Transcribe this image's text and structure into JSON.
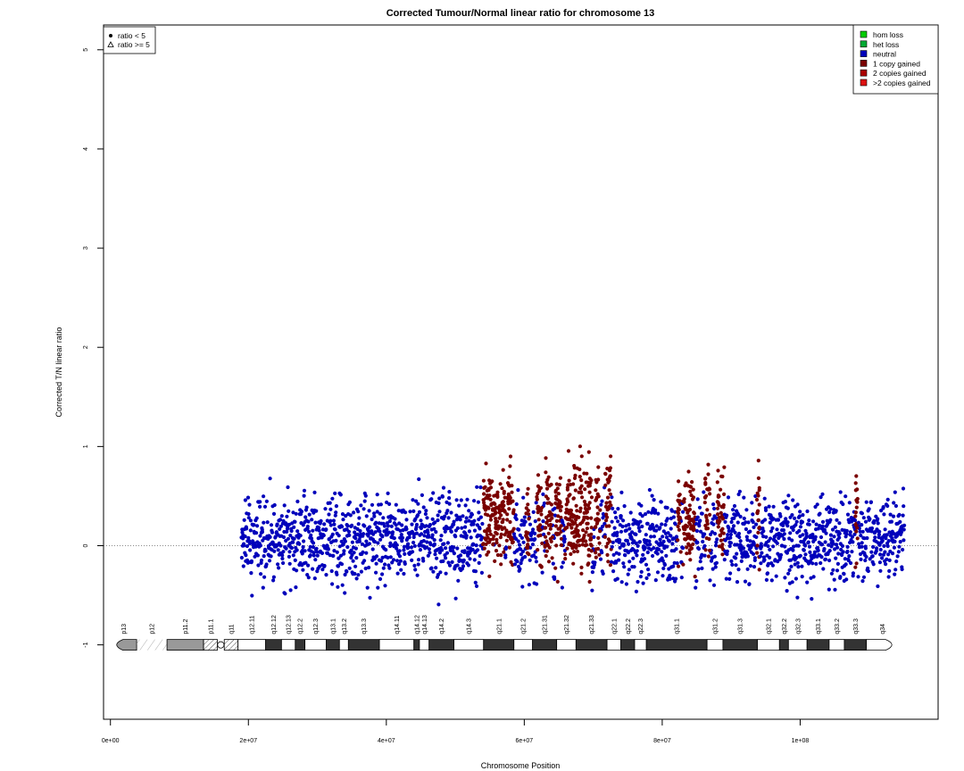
{
  "chart_data": {
    "type": "scatter",
    "title": "Corrected Tumour/Normal linear ratio for chromosome  13",
    "xlabel": "Chromosome Position",
    "ylabel": "Corrected T/N linear ratio",
    "xlim": [
      -1000000,
      120000000.0
    ],
    "ylim": [
      -1.75,
      5.25
    ],
    "x_ticks": [
      0,
      20000000,
      40000000,
      60000000,
      80000000,
      100000000
    ],
    "x_tick_labels": [
      "0e+00",
      "2e+07",
      "4e+07",
      "6e+07",
      "8e+07",
      "1e+08"
    ],
    "y_ticks": [
      -1,
      0,
      1,
      2,
      3,
      4,
      5
    ],
    "y_tick_labels": [
      "-1",
      "0",
      "1",
      "2",
      "3",
      "4",
      "5"
    ],
    "reference_line": 0,
    "data_range": [
      19000000,
      115100000
    ],
    "colors": {
      "hom_loss": "#00cc00",
      "het_loss": "#00aa33",
      "neutral": "#0000bb",
      "gain1": "#7a0000",
      "gain2": "#aa0000",
      "gain_more": "#dd1111"
    },
    "shape_legend": {
      "position": "top-left",
      "items": [
        {
          "symbol": "filled-circle",
          "label": "ratio < 5"
        },
        {
          "symbol": "open-triangle",
          "label": "ratio >= 5"
        }
      ]
    },
    "legend": {
      "position": "top-right",
      "items": [
        {
          "label": "hom loss",
          "color_key": "hom_loss"
        },
        {
          "label": "het loss",
          "color_key": "het_loss"
        },
        {
          "label": "neutral",
          "color_key": "neutral"
        },
        {
          "label": "1 copy gained",
          "color_key": "gain1"
        },
        {
          "label": "2 copies gained",
          "color_key": "gain2"
        },
        {
          "label": ">2 copies gained",
          "color_key": "gain_more"
        }
      ]
    },
    "gain_regions": [
      [
        54000000,
        55600000
      ],
      [
        55700000,
        57200000
      ],
      [
        57400000,
        58500000
      ],
      [
        60200000,
        60700000
      ],
      [
        61800000,
        62600000
      ],
      [
        63000000,
        64100000
      ],
      [
        64500000,
        65400000
      ],
      [
        65900000,
        69800000
      ],
      [
        70300000,
        71000000
      ],
      [
        71700000,
        72600000
      ],
      [
        82200000,
        82700000
      ],
      [
        83000000,
        84800000
      ],
      [
        86200000,
        86900000
      ],
      [
        88000000,
        89000000
      ],
      [
        93700000,
        94100000
      ],
      [
        108000000,
        108400000
      ]
    ],
    "ideogram": {
      "y": -1,
      "bands": [
        {
          "name": "p13",
          "start": 0,
          "end": 3800000,
          "stain": "gpos50",
          "shape": "cap-left"
        },
        {
          "name": "p12",
          "start": 3800000,
          "end": 8200000,
          "stain": "stalk"
        },
        {
          "name": "p11.2",
          "start": 8200000,
          "end": 13500000,
          "stain": "gpos50"
        },
        {
          "name": "p11.1",
          "start": 13500000,
          "end": 15500000,
          "stain": "acen-hatch"
        },
        {
          "name": "",
          "start": 15500000,
          "end": 16500000,
          "stain": "centromere"
        },
        {
          "name": "q11",
          "start": 16500000,
          "end": 18500000,
          "stain": "acen-hatch"
        },
        {
          "name": "q12.11",
          "start": 18500000,
          "end": 22500000,
          "stain": "gneg"
        },
        {
          "name": "q12.12",
          "start": 22500000,
          "end": 24800000,
          "stain": "gpos75"
        },
        {
          "name": "q12.13",
          "start": 24800000,
          "end": 26800000,
          "stain": "gneg"
        },
        {
          "name": "q12.2",
          "start": 26800000,
          "end": 28200000,
          "stain": "gpos75"
        },
        {
          "name": "q12.3",
          "start": 28200000,
          "end": 31300000,
          "stain": "gneg"
        },
        {
          "name": "q13.1",
          "start": 31300000,
          "end": 33200000,
          "stain": "gpos75"
        },
        {
          "name": "q13.2",
          "start": 33200000,
          "end": 34500000,
          "stain": "gneg"
        },
        {
          "name": "q13.3",
          "start": 34500000,
          "end": 39000000,
          "stain": "gpos75"
        },
        {
          "name": "q14.11",
          "start": 39000000,
          "end": 44000000,
          "stain": "gneg"
        },
        {
          "name": "q14.12",
          "start": 44000000,
          "end": 44800000,
          "stain": "gpos75"
        },
        {
          "name": "q14.13",
          "start": 44800000,
          "end": 46200000,
          "stain": "gneg"
        },
        {
          "name": "q14.2",
          "start": 46200000,
          "end": 49800000,
          "stain": "gpos75"
        },
        {
          "name": "q14.3",
          "start": 49800000,
          "end": 54100000,
          "stain": "gneg"
        },
        {
          "name": "q21.1",
          "start": 54100000,
          "end": 58500000,
          "stain": "gpos75"
        },
        {
          "name": "q21.2",
          "start": 58500000,
          "end": 61200000,
          "stain": "gneg"
        },
        {
          "name": "q21.31",
          "start": 61200000,
          "end": 64700000,
          "stain": "gpos75"
        },
        {
          "name": "q21.32",
          "start": 64700000,
          "end": 67500000,
          "stain": "gneg"
        },
        {
          "name": "q21.33",
          "start": 67500000,
          "end": 72000000,
          "stain": "gpos75"
        },
        {
          "name": "q22.1",
          "start": 72000000,
          "end": 74000000,
          "stain": "gneg"
        },
        {
          "name": "q22.2",
          "start": 74000000,
          "end": 76000000,
          "stain": "gpos75"
        },
        {
          "name": "q22.3",
          "start": 76000000,
          "end": 77700000,
          "stain": "gneg"
        },
        {
          "name": "q31.1",
          "start": 77700000,
          "end": 86500000,
          "stain": "gpos75"
        },
        {
          "name": "q31.2",
          "start": 86500000,
          "end": 88800000,
          "stain": "gneg"
        },
        {
          "name": "q31.3",
          "start": 88800000,
          "end": 93800000,
          "stain": "gpos75"
        },
        {
          "name": "q32.1",
          "start": 93800000,
          "end": 97000000,
          "stain": "gneg"
        },
        {
          "name": "q32.2",
          "start": 97000000,
          "end": 98300000,
          "stain": "gpos75"
        },
        {
          "name": "q32.3",
          "start": 98300000,
          "end": 101000000,
          "stain": "gneg"
        },
        {
          "name": "q33.1",
          "start": 101000000,
          "end": 104200000,
          "stain": "gpos75"
        },
        {
          "name": "q33.2",
          "start": 104200000,
          "end": 106400000,
          "stain": "gneg"
        },
        {
          "name": "q33.3",
          "start": 106400000,
          "end": 109600000,
          "stain": "gpos75"
        },
        {
          "name": "q34",
          "start": 109600000,
          "end": 114200000,
          "stain": "gneg",
          "shape": "cap-right"
        }
      ]
    }
  }
}
